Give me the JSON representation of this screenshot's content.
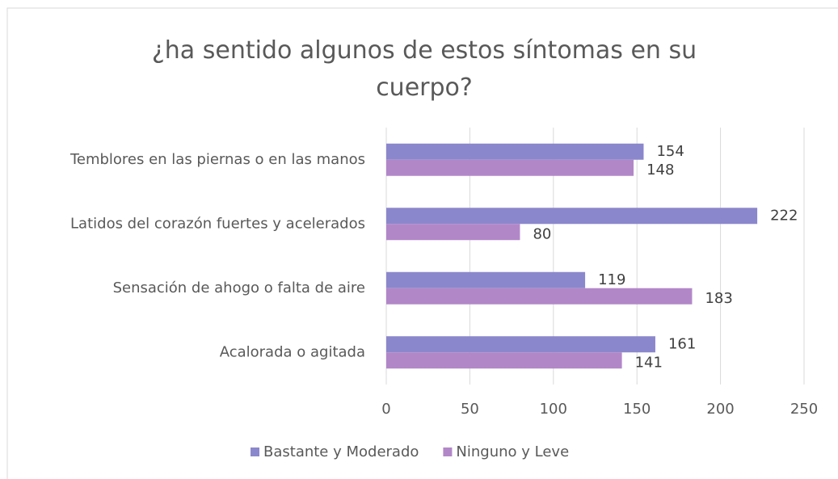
{
  "chart_data": {
    "type": "barh",
    "title": "¿ha sentido algunos de estos síntomas en su cuerpo?",
    "categories": [
      "Temblores en las piernas o en las manos",
      "Latidos del corazón fuertes y acelerados",
      "Sensación de ahogo o falta de aire",
      "Acalorada o agitada"
    ],
    "series": [
      {
        "name": "Bastante y Moderado",
        "color": "#8b87cc",
        "values": [
          154,
          222,
          119,
          161
        ]
      },
      {
        "name": "Ninguno y Leve",
        "color": "#b287c8",
        "values": [
          148,
          80,
          183,
          141
        ]
      }
    ],
    "xlim": [
      0,
      250
    ],
    "xticks": [
      0,
      50,
      100,
      150,
      200,
      250
    ],
    "grid": true,
    "legend": "bottom"
  }
}
